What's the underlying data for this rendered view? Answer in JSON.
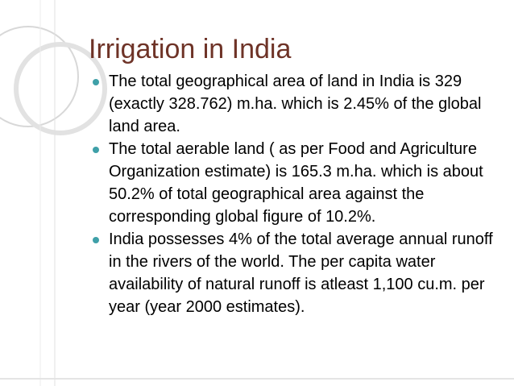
{
  "title": "Irrigation in India",
  "bullets": [
    "The total geographical area of land in India is 329 (exactly 328.762) m.ha. which is 2.45% of the global land area.",
    "The total aerable land ( as per Food and Agriculture Organization estimate) is 165.3 m.ha. which is about 50.2% of total geographical area against the corresponding global figure of 10.2%.",
    "India possesses 4% of the total average annual runoff in the rivers of the world. The per capita water availability of natural runoff is atleast 1,100 cu.m. per year (year 2000 estimates)."
  ]
}
